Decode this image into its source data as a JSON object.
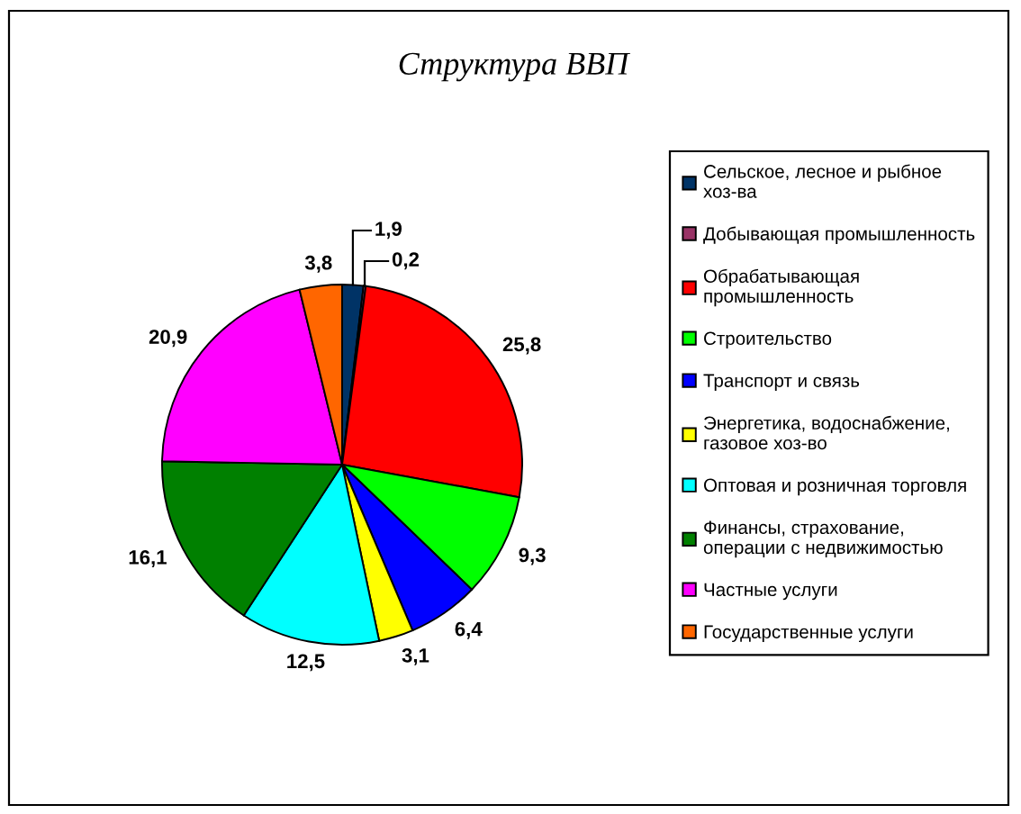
{
  "chart_data": {
    "type": "pie",
    "title": "Структура ВВП",
    "categories": [
      "Сельское, лесное и рыбное хоз-ва",
      "Добывающая промышленность",
      "Обрабатывающая промышленность",
      "Строительство",
      "Транспорт и связь",
      "Энергетика, водоснабжение, газовое хоз-во",
      "Оптовая и розничная торговля",
      "Финансы, страхование, операции с недвижимостью",
      "Частные услуги",
      "Государственные услуги"
    ],
    "values": [
      1.9,
      0.2,
      25.8,
      9.3,
      6.4,
      3.1,
      12.5,
      16.1,
      20.9,
      3.8
    ],
    "colors": [
      "#003366",
      "#993366",
      "#ff0000",
      "#00ff00",
      "#0000ff",
      "#ffff00",
      "#00ffff",
      "#008000",
      "#ff00ff",
      "#ff6600"
    ],
    "value_labels": [
      "1,9",
      "0,2",
      "25,8",
      "9,3",
      "6,4",
      "3,1",
      "12,5",
      "16,1",
      "20,9",
      "3,8"
    ],
    "legend": "right"
  }
}
